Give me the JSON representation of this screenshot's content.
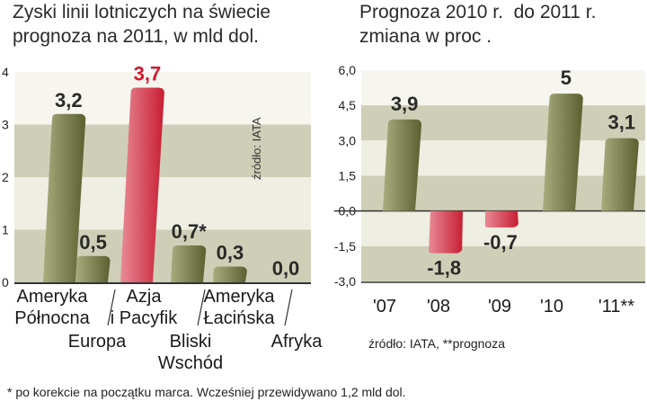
{
  "colors": {
    "bar_green_dark": "#5b6030",
    "bar_green_light": "#a8ad7e",
    "bar_red_dark": "#c81e33",
    "bar_red_light": "#e88a95",
    "label_red": "#d0182e",
    "band_dark": "#cfcfb8",
    "band_light": "#eeeee2",
    "axis": "#333333"
  },
  "footnote": "* po korekcie na początku marca. Wcześniej przewidywano 1,2 mld dol.",
  "chart_data": [
    {
      "type": "bar",
      "title": "Zyski linii lotniczych na świecie\nprognoza na 2011, w mld dol.",
      "xlabel": "",
      "ylabel": "",
      "ylim": [
        0,
        4
      ],
      "yticks": [
        "0",
        "1",
        "2",
        "3",
        "4"
      ],
      "source": "źródło: IATA",
      "categories": [
        [
          "Ameryka",
          "Północna"
        ],
        [
          "Europa"
        ],
        [
          "Azja",
          "i Pacyfik"
        ],
        [
          "Bliski",
          "Wschód"
        ],
        [
          "Ameryka",
          "Łacińska"
        ],
        [
          "Afryka"
        ]
      ],
      "values": [
        3.2,
        0.5,
        3.7,
        0.7,
        0.3,
        0.0
      ],
      "value_labels": [
        "3,2",
        "0,5",
        "3,7",
        "0,7*",
        "0,3",
        "0,0"
      ],
      "highlight": [
        false,
        false,
        true,
        false,
        false,
        false
      ]
    },
    {
      "type": "bar",
      "title": "Prognoza 2010 r.  do 2011 r.\nzmiana w proc .",
      "xlabel": "",
      "ylabel": "",
      "ylim": [
        -3.0,
        6.0
      ],
      "yticks": [
        "-3,0",
        "-1,5",
        "0,0",
        "1,5",
        "3,0",
        "4,5",
        "6,0"
      ],
      "source": "źródło:  IATA, **prognoza",
      "categories": [
        "'07",
        "'08",
        "'09",
        "'10",
        "'11**"
      ],
      "values": [
        3.9,
        -1.8,
        -0.7,
        5.0,
        3.1
      ],
      "value_labels": [
        "3,9",
        "-1,8",
        "-0,7",
        "5",
        "3,1"
      ]
    }
  ]
}
